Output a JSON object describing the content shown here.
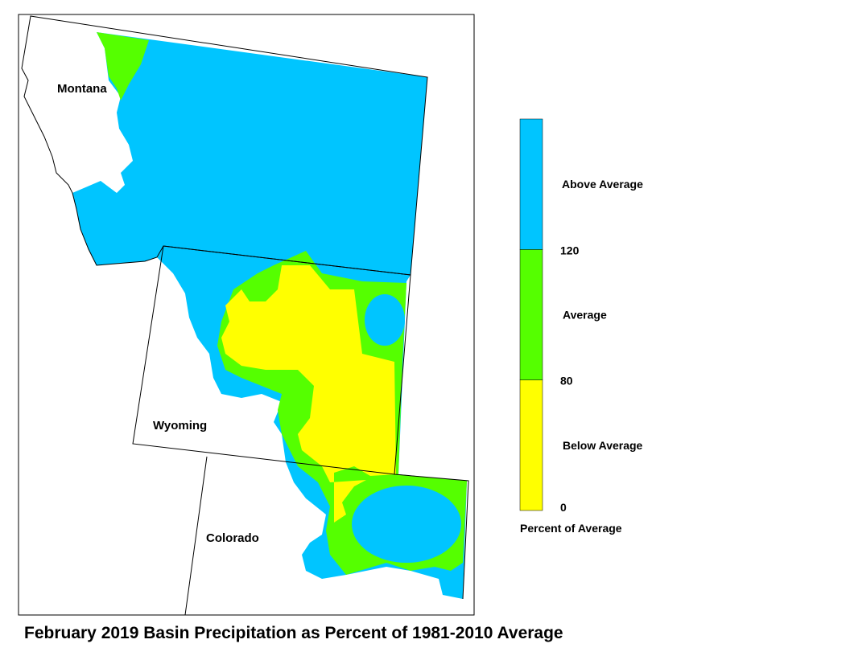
{
  "map": {
    "caption": "February 2019 Basin Precipitation as Percent of 1981-2010 Average",
    "states": [
      "Montana",
      "Wyoming",
      "Colorado"
    ],
    "legend": {
      "title": "Percent of Average",
      "ticks": [
        0,
        80,
        120
      ],
      "classes": [
        {
          "label": "Below Average",
          "color": "#ffff00"
        },
        {
          "label": "Average",
          "color": "#55ff00"
        },
        {
          "label": "Above Average",
          "color": "#00c5ff"
        }
      ]
    }
  }
}
